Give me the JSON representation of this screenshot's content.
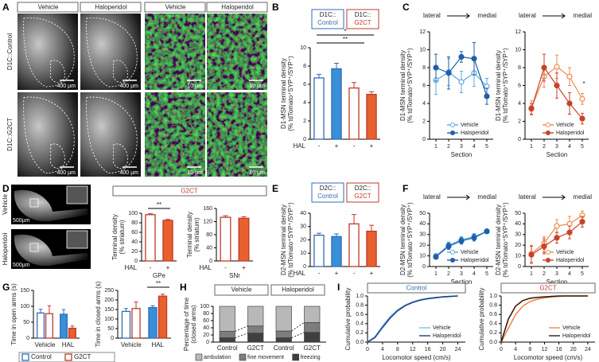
{
  "panel_labels": [
    "A",
    "B",
    "C",
    "D",
    "E",
    "F",
    "G",
    "H",
    "I"
  ],
  "panel_a": {
    "column_headers": [
      "Vehicle",
      "Haloperidol",
      "Vehicle",
      "Haloperidol"
    ],
    "row_labels": [
      "D1C::Control",
      "D1C::G2CT"
    ],
    "scale_bars": [
      "400 µm",
      "400 µm",
      "10 µm",
      "10 µm",
      "400 µm",
      "400 µm",
      "10 µm",
      "10 µm"
    ]
  },
  "panel_d": {
    "row_labels": [
      "Vehicle",
      "Haloperidol"
    ],
    "scale_bars": [
      "500µm",
      "500µm"
    ],
    "header": "G2CT"
  },
  "chart_data": [
    {
      "type": "bar",
      "ylabel": [
        "D1-MSN terminal density",
        "(% tdTomato⁺SYP⁺/SYP⁺)"
      ],
      "ylim": [
        0,
        10
      ],
      "yticks": [
        0,
        2,
        4,
        6,
        8,
        10
      ],
      "categories": [
        "-",
        "+",
        "-",
        "+"
      ],
      "values": [
        6.7,
        7.7,
        5.6,
        4.9
      ],
      "errors": [
        0.4,
        0.6,
        0.6,
        0.3
      ],
      "colors": [
        "#ffffff",
        "#3a8fd9",
        "#ffffff",
        "#e8612c"
      ],
      "edge_colors": [
        "#2f6db5",
        "#2f6db5",
        "#c0392b",
        "#c0392b"
      ],
      "row_label": "HAL",
      "group_labels": [
        [
          "D1C::",
          "Control"
        ],
        [
          "D1C::",
          "G2CT"
        ]
      ],
      "annotations": [
        "*",
        "**"
      ]
    },
    {
      "type": "line",
      "ylabel": [
        "D1-MSN terminal density",
        "(% tdTomato⁺SYP⁺/SYP⁺)"
      ],
      "xlabel": "Section",
      "direction_labels": [
        "lateral",
        "medial"
      ],
      "x": [
        1,
        2,
        3,
        4,
        5
      ],
      "xlim": [
        0.5,
        5.5
      ],
      "xticks": [
        1,
        2,
        3,
        4,
        5
      ],
      "ylim": [
        0,
        12
      ],
      "yticks": [
        0,
        2,
        4,
        6,
        8,
        10,
        12
      ],
      "legend": "lower right",
      "series": [
        {
          "name": "Vehicle",
          "color": "#5aa9e0",
          "filled": false,
          "values": [
            6.6,
            7.5,
            6.4,
            7.4,
            5.9
          ],
          "errors": [
            1.6,
            1.5,
            1.2,
            1.5,
            0.9
          ]
        },
        {
          "name": "Haloperidol",
          "color": "#1f5fa8",
          "filled": true,
          "values": [
            8,
            7.4,
            9.2,
            9,
            4.8
          ],
          "errors": [
            1.5,
            1.8,
            0.6,
            1.8,
            0.9
          ]
        }
      ]
    },
    {
      "type": "line",
      "ylabel": [
        "D1-MSN terminal density",
        "(% tdTomato⁺SYP⁺/SYP⁺)"
      ],
      "xlabel": "Section",
      "direction_labels": [
        "lateral",
        "medial"
      ],
      "x": [
        1,
        2,
        3,
        4,
        5
      ],
      "xlim": [
        0.5,
        5.5
      ],
      "xticks": [
        1,
        2,
        3,
        4,
        5
      ],
      "ylim": [
        0,
        12
      ],
      "yticks": [
        0,
        2,
        4,
        6,
        8,
        10,
        12
      ],
      "legend": "lower right",
      "annotations": [
        "*"
      ],
      "series": [
        {
          "name": "Vehicle",
          "color": "#f08a4b",
          "filled": false,
          "values": [
            3.5,
            7.0,
            8.1,
            7.0,
            4.5
          ],
          "errors": [
            0.8,
            1.2,
            1.3,
            1.0,
            0.6
          ]
        },
        {
          "name": "Haloperidol",
          "color": "#c7432a",
          "filled": true,
          "values": [
            3.4,
            8.0,
            6.0,
            4.0,
            2.3
          ],
          "errors": [
            0.6,
            1.5,
            1.4,
            1.2,
            0.6
          ]
        }
      ]
    },
    {
      "type": "bar",
      "ylabel": [
        "Terminal density",
        "(% striatum)"
      ],
      "xlabel": "GPe",
      "ylim": [
        0,
        100
      ],
      "yticks": [
        0,
        20,
        40,
        60,
        80,
        100
      ],
      "categories": [
        "-",
        "+"
      ],
      "values": [
        97,
        85
      ],
      "errors": [
        2,
        2
      ],
      "colors": [
        "#ffffff",
        "#e8612c"
      ],
      "edge_colors": [
        "#c0392b",
        "#c0392b"
      ],
      "row_label": "HAL",
      "annotations": [
        "**"
      ]
    },
    {
      "type": "bar",
      "ylabel": [
        "Terminal density",
        "(% striatum)"
      ],
      "xlabel": "SNr",
      "ylim": [
        0,
        160
      ],
      "yticks": [
        0,
        40,
        80,
        120,
        160
      ],
      "categories": [
        "-",
        "+"
      ],
      "values": [
        133,
        130
      ],
      "errors": [
        5,
        5
      ],
      "colors": [
        "#ffffff",
        "#e8612c"
      ],
      "edge_colors": [
        "#c0392b",
        "#c0392b"
      ],
      "row_label": "HAL"
    },
    {
      "type": "bar",
      "ylabel": [
        "D2-MSN terminal density",
        "(% tdTomato⁺SYP⁺/SYP⁺)"
      ],
      "ylim": [
        0,
        40
      ],
      "yticks": [
        0,
        10,
        20,
        30,
        40
      ],
      "categories": [
        "-",
        "+",
        "-",
        "+"
      ],
      "values": [
        23.5,
        22.5,
        32,
        26.5
      ],
      "errors": [
        1.5,
        2,
        7,
        4.5
      ],
      "colors": [
        "#ffffff",
        "#3a8fd9",
        "#ffffff",
        "#e8612c"
      ],
      "edge_colors": [
        "#2f6db5",
        "#2f6db5",
        "#c0392b",
        "#c0392b"
      ],
      "row_label": "HAL",
      "group_labels": [
        [
          "D2C::",
          "Control"
        ],
        [
          "D2C::",
          "G2CT"
        ]
      ]
    },
    {
      "type": "line",
      "ylabel": [
        "D2-MSN terminal density",
        "(% tdTomato⁺SYP⁺/SYP⁺)"
      ],
      "xlabel": "Section",
      "direction_labels": [
        "lateral",
        "medial"
      ],
      "x": [
        1,
        2,
        3,
        4,
        5
      ],
      "xlim": [
        0.5,
        5.5
      ],
      "xticks": [
        1,
        2,
        3,
        4,
        5
      ],
      "ylim": [
        0,
        50
      ],
      "yticks": [
        0,
        10,
        20,
        30,
        40,
        50
      ],
      "legend": "lower right",
      "series": [
        {
          "name": "Vehicle",
          "color": "#5aa9e0",
          "filled": false,
          "values": [
            10,
            20,
            25,
            28,
            33
          ],
          "errors": [
            2,
            3,
            3,
            3,
            2
          ]
        },
        {
          "name": "Haloperidol",
          "color": "#1f5fa8",
          "filled": true,
          "values": [
            9,
            19,
            24,
            27,
            33
          ],
          "errors": [
            2,
            3,
            3,
            3,
            2
          ]
        }
      ]
    },
    {
      "type": "line",
      "ylabel": [
        "D2-MSN terminal density",
        "(% tdTomato⁺SYP⁺/SYP⁺)"
      ],
      "xlabel": "Section",
      "direction_labels": [
        "lateral",
        "medial"
      ],
      "x": [
        1,
        2,
        3,
        4,
        5
      ],
      "xlim": [
        0.5,
        5.5
      ],
      "xticks": [
        1,
        2,
        3,
        4,
        5
      ],
      "ylim": [
        0,
        50
      ],
      "yticks": [
        0,
        10,
        20,
        30,
        40,
        50
      ],
      "legend": "lower right",
      "series": [
        {
          "name": "Vehicle",
          "color": "#f08a4b",
          "filled": false,
          "values": [
            12,
            22,
            38,
            40,
            48
          ],
          "errors": [
            8,
            6,
            6,
            7,
            4
          ]
        },
        {
          "name": "Haloperidol",
          "color": "#c7432a",
          "filled": true,
          "values": [
            11,
            19,
            27,
            32,
            42
          ],
          "errors": [
            8,
            7,
            5,
            6,
            5
          ]
        }
      ]
    },
    {
      "type": "bar",
      "ylabel": [
        "Time in open arms (s)"
      ],
      "ylim": [
        0,
        150
      ],
      "yticks": [
        0,
        50,
        100,
        150
      ],
      "categories": [
        "Vehicle",
        "HAL"
      ],
      "series": [
        {
          "name": "Control",
          "edge_color": "#2f6db5",
          "colors": [
            "#ffffff",
            "#3a8fd9"
          ],
          "values": [
            79,
            75
          ],
          "errors": [
            12,
            15
          ]
        },
        {
          "name": "G2CT",
          "edge_color": "#c0392b",
          "colors": [
            "#ffffff",
            "#e8612c"
          ],
          "values": [
            77,
            31
          ],
          "errors": [
            25,
            7
          ]
        }
      ]
    },
    {
      "type": "bar",
      "ylabel": [
        "Time in closed arms (s)"
      ],
      "ylim": [
        0,
        250
      ],
      "yticks": [
        0,
        50,
        100,
        150,
        200,
        250
      ],
      "categories": [
        "Vehicle",
        "HAL"
      ],
      "annotations": [
        "**"
      ],
      "series": [
        {
          "edge_color": "#2f6db5",
          "colors": [
            "#ffffff",
            "#3a8fd9"
          ],
          "values": [
            140,
            160
          ],
          "errors": [
            15,
            10
          ]
        },
        {
          "edge_color": "#c0392b",
          "colors": [
            "#ffffff",
            "#e8612c"
          ],
          "values": [
            155,
            220
          ],
          "errors": [
            35,
            10
          ]
        }
      ]
    },
    {
      "type": "stacked_bar",
      "ylabel": [
        "Percentage of time",
        "(closed arms)"
      ],
      "ylim": [
        0,
        100
      ],
      "yticks": [
        0,
        20,
        40,
        60,
        80,
        100
      ],
      "categories": [
        "Control",
        "G2CT",
        "Control",
        "G2CT"
      ],
      "group_labels": [
        "Vehicle",
        "Haloperidol"
      ],
      "annotations": [
        "**",
        "*",
        "*"
      ],
      "series": [
        {
          "name": "ambulation",
          "color": "#b8b8b8",
          "values": [
            70,
            55,
            69,
            45
          ]
        },
        {
          "name": "fine movement",
          "color": "#7d7d7d",
          "values": [
            18,
            20,
            19,
            28
          ]
        },
        {
          "name": "freezing",
          "color": "#404040",
          "values": [
            12,
            25,
            12,
            27
          ]
        }
      ]
    },
    {
      "type": "line",
      "markers": false,
      "title": "Control",
      "title_color": "#2f6db5",
      "ylabel": [
        "Cumulative probability"
      ],
      "xlabel": "Locomotor speed (cm/s)",
      "x": [
        0,
        2,
        4,
        6,
        8,
        10,
        12,
        14,
        16,
        18,
        20,
        22,
        24
      ],
      "xlim": [
        0,
        26
      ],
      "xticks": [
        0,
        4,
        8,
        12,
        16,
        20,
        24
      ],
      "ylim": [
        0,
        1
      ],
      "yticks": [
        {
          "value": 0,
          "label": "0.0"
        },
        {
          "value": 0.2,
          "label": "0.2"
        },
        {
          "value": 0.4,
          "label": "0.4"
        },
        {
          "value": 0.6,
          "label": "0.6"
        },
        {
          "value": 0.8,
          "label": "0.8"
        },
        {
          "value": 1,
          "label": "1.0"
        }
      ],
      "legend": "lower right",
      "series": [
        {
          "name": "Vehicle",
          "color": "#7fbde8",
          "values": [
            0,
            0.12,
            0.35,
            0.55,
            0.7,
            0.8,
            0.87,
            0.92,
            0.95,
            0.97,
            0.98,
            0.99,
            1
          ]
        },
        {
          "name": "Haloperidol",
          "color": "#1f3f8a",
          "values": [
            0,
            0.1,
            0.32,
            0.52,
            0.68,
            0.79,
            0.86,
            0.91,
            0.94,
            0.96,
            0.98,
            0.99,
            1
          ]
        }
      ]
    },
    {
      "type": "line",
      "markers": false,
      "title": "G2CT",
      "title_color": "#c0392b",
      "ylabel": [
        "Cumulative probability"
      ],
      "xlabel": "Locomotor speed (cm/s)",
      "x": [
        0,
        2,
        4,
        6,
        8,
        10,
        12,
        14,
        16,
        18,
        20,
        22,
        24
      ],
      "xlim": [
        0,
        26
      ],
      "xticks": [
        0,
        4,
        8,
        12,
        16,
        20,
        24
      ],
      "ylim": [
        0,
        1
      ],
      "yticks": [
        {
          "value": 0,
          "label": "0.0"
        },
        {
          "value": 0.2,
          "label": "0.2"
        },
        {
          "value": 0.4,
          "label": "0.4"
        },
        {
          "value": 0.6,
          "label": "0.6"
        },
        {
          "value": 0.8,
          "label": "0.8"
        },
        {
          "value": 1,
          "label": "1.0"
        }
      ],
      "legend": "lower right",
      "series": [
        {
          "name": "Vehicle",
          "color": "#f08a4b",
          "values": [
            0,
            0.3,
            0.6,
            0.78,
            0.88,
            0.93,
            0.96,
            0.98,
            0.99,
            1,
            1,
            1,
            1
          ]
        },
        {
          "name": "Haloperidol",
          "color": "#3a1a12",
          "values": [
            0,
            0.5,
            0.78,
            0.9,
            0.95,
            0.97,
            0.98,
            0.99,
            1,
            1,
            1,
            1,
            1
          ]
        }
      ]
    }
  ]
}
